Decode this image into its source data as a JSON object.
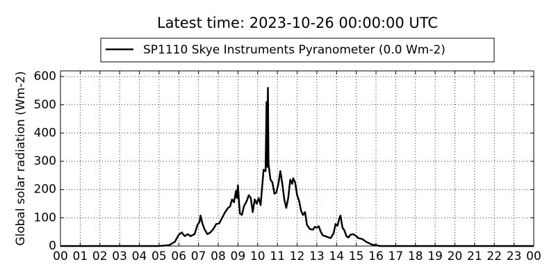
{
  "chart_data": {
    "type": "line",
    "title": "Latest time: 2023-10-26 00:00:00 UTC",
    "y_label": "Global solar radiation (Wm-2)",
    "x": [
      0,
      5.0,
      5.5,
      5.8,
      6.0,
      6.15,
      6.3,
      6.45,
      6.6,
      6.8,
      6.95,
      7.05,
      7.1,
      7.2,
      7.3,
      7.45,
      7.6,
      7.75,
      7.9,
      8.05,
      8.2,
      8.35,
      8.5,
      8.6,
      8.7,
      8.8,
      8.9,
      8.95,
      9.0,
      9.05,
      9.1,
      9.2,
      9.3,
      9.45,
      9.55,
      9.65,
      9.75,
      9.85,
      9.95,
      10.05,
      10.15,
      10.3,
      10.4,
      10.45,
      10.48,
      10.52,
      10.55,
      10.65,
      10.75,
      10.85,
      10.95,
      11.05,
      11.15,
      11.25,
      11.35,
      11.45,
      11.55,
      11.65,
      11.75,
      11.8,
      11.9,
      12.0,
      12.1,
      12.2,
      12.3,
      12.4,
      12.5,
      12.65,
      12.8,
      12.9,
      13.0,
      13.1,
      13.2,
      13.3,
      13.5,
      13.7,
      13.85,
      13.95,
      14.05,
      14.15,
      14.2,
      14.3,
      14.4,
      14.5,
      14.6,
      14.7,
      14.85,
      15.0,
      15.1,
      15.3,
      15.5,
      15.8,
      16.0,
      16.2,
      24
    ],
    "series": [
      {
        "name": "SP1110 Skye Instruments Pyranometer (0.0 Wm-2)",
        "color": "#000000",
        "values": [
          0,
          0,
          3,
          15,
          40,
          48,
          35,
          42,
          35,
          42,
          75,
          85,
          108,
          80,
          60,
          42,
          48,
          60,
          78,
          80,
          100,
          120,
          135,
          140,
          165,
          155,
          195,
          170,
          215,
          160,
          115,
          110,
          140,
          160,
          180,
          170,
          120,
          165,
          150,
          170,
          145,
          270,
          265,
          510,
          280,
          560,
          290,
          235,
          225,
          185,
          190,
          220,
          265,
          220,
          165,
          135,
          170,
          235,
          220,
          240,
          225,
          180,
          160,
          125,
          110,
          120,
          75,
          60,
          58,
          68,
          65,
          70,
          50,
          38,
          33,
          28,
          45,
          78,
          72,
          100,
          108,
          65,
          55,
          35,
          30,
          40,
          42,
          35,
          28,
          25,
          15,
          5,
          3,
          0,
          0
        ]
      }
    ],
    "xlim": [
      0,
      24
    ],
    "ylim": [
      0,
      620
    ],
    "xticks": [
      {
        "value": 0,
        "label": "00"
      },
      {
        "value": 1,
        "label": "01"
      },
      {
        "value": 2,
        "label": "02"
      },
      {
        "value": 3,
        "label": "03"
      },
      {
        "value": 4,
        "label": "04"
      },
      {
        "value": 5,
        "label": "05"
      },
      {
        "value": 6,
        "label": "06"
      },
      {
        "value": 7,
        "label": "07"
      },
      {
        "value": 8,
        "label": "08"
      },
      {
        "value": 9,
        "label": "09"
      },
      10,
      11,
      12,
      13,
      14,
      15,
      16,
      17,
      18,
      19,
      20,
      21,
      22,
      23,
      {
        "value": 24,
        "label": "00"
      }
    ],
    "yticks": [
      0,
      100,
      200,
      300,
      400,
      500,
      600
    ],
    "grid": true
  }
}
